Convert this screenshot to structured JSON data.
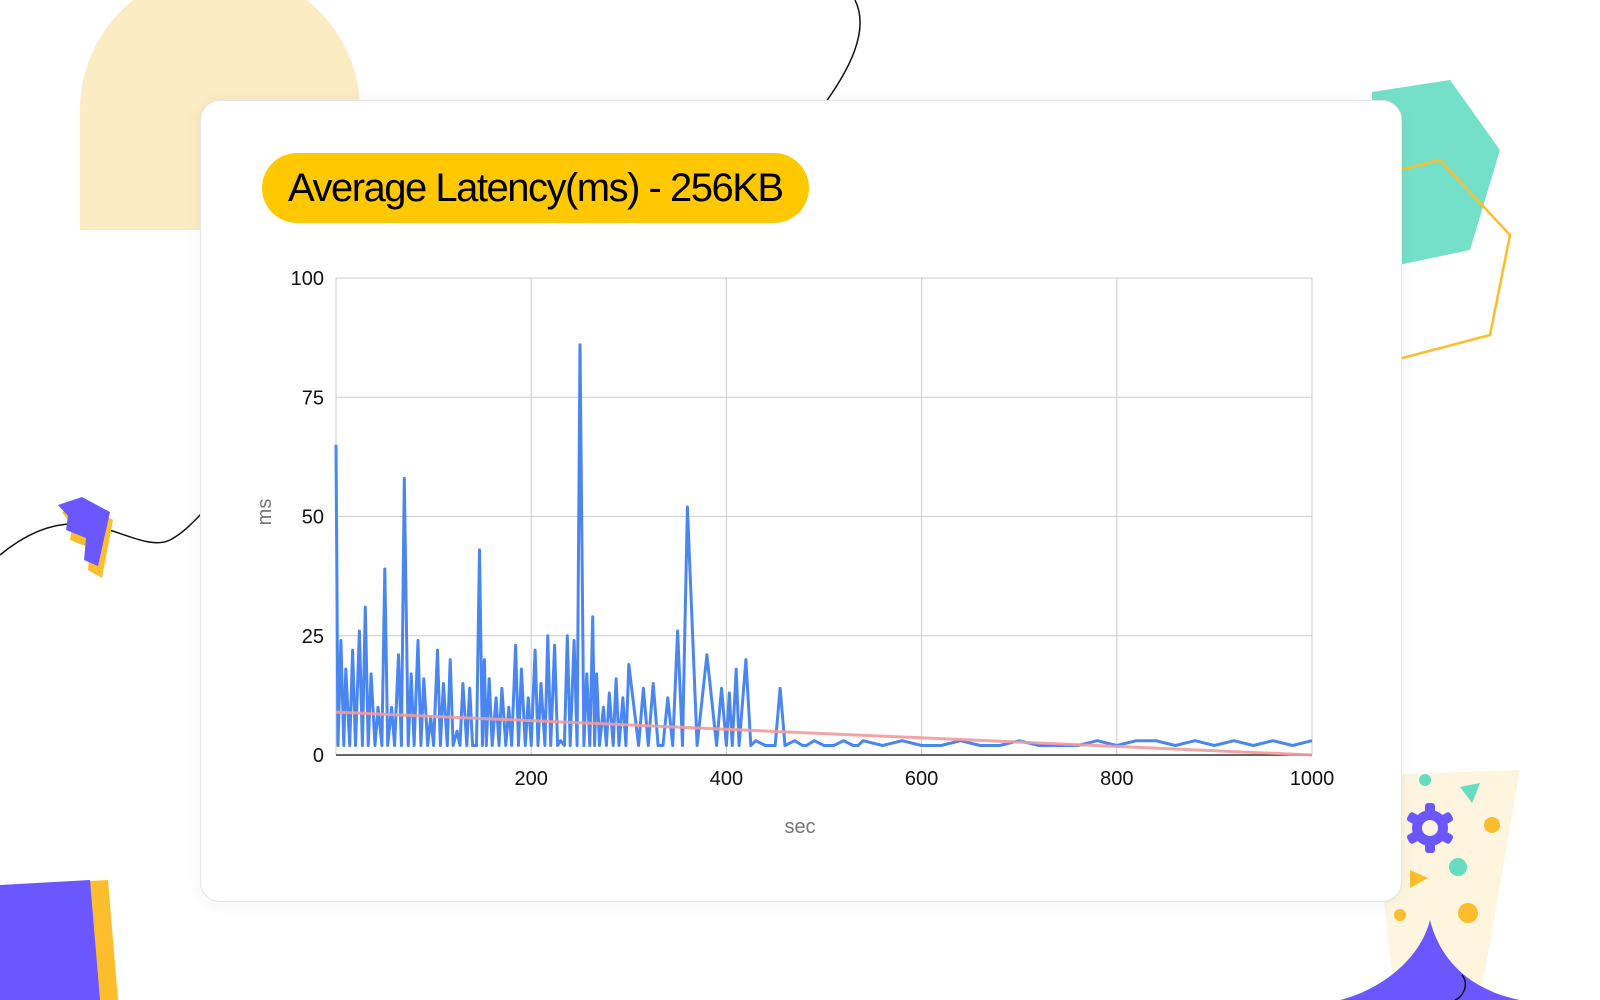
{
  "chart_data": {
    "type": "line",
    "title": "Average Latency(ms) - 256KB",
    "xlabel": "sec",
    "ylabel": "ms",
    "xlim": [
      0,
      1000
    ],
    "ylim": [
      0,
      100
    ],
    "x_ticks": [
      200,
      400,
      600,
      800,
      1000
    ],
    "y_ticks": [
      0,
      25,
      50,
      75,
      100
    ],
    "grid": true,
    "legend": "none",
    "series": [
      {
        "color": "#4a86f0",
        "baseline": 2.5,
        "x": [
          0,
          2,
          5,
          8,
          10,
          14,
          17,
          20,
          24,
          27,
          30,
          33,
          36,
          40,
          43,
          47,
          50,
          53,
          57,
          60,
          64,
          67,
          70,
          74,
          77,
          80,
          84,
          87,
          90,
          94,
          97,
          100,
          104,
          107,
          110,
          114,
          117,
          120,
          124,
          127,
          130,
          134,
          137,
          140,
          144,
          147,
          150,
          152,
          154,
          157,
          160,
          164,
          167,
          170,
          174,
          177,
          180,
          184,
          187,
          190,
          194,
          197,
          200,
          204,
          207,
          210,
          214,
          217,
          220,
          224,
          227,
          230,
          234,
          237,
          240,
          244,
          247,
          250,
          254,
          257,
          260,
          263,
          265,
          267,
          270,
          274,
          277,
          280,
          284,
          287,
          290,
          294,
          297,
          300,
          310,
          315,
          320,
          325,
          330,
          335,
          340,
          345,
          350,
          355,
          360,
          370,
          380,
          390,
          395,
          400,
          403,
          406,
          410,
          413,
          420,
          425,
          430,
          440,
          450,
          455,
          460,
          470,
          478,
          482,
          490,
          500,
          510,
          520,
          530,
          535,
          540,
          560,
          580,
          600,
          620,
          640,
          660,
          680,
          700,
          720,
          740,
          760,
          780,
          800,
          820,
          840,
          860,
          880,
          900,
          920,
          940,
          960,
          980,
          1000
        ],
        "y": [
          65,
          2,
          24,
          2,
          18,
          2,
          22,
          2,
          26,
          2,
          31,
          2,
          17,
          2,
          10,
          2,
          39,
          2,
          10,
          2,
          21,
          2,
          58,
          2,
          17,
          2,
          24,
          2,
          16,
          2,
          8,
          2,
          22,
          2,
          15,
          2,
          20,
          2,
          5,
          2,
          15,
          2,
          14,
          2,
          2,
          43,
          2,
          20,
          2,
          16,
          2,
          12,
          2,
          14,
          2,
          10,
          2,
          23,
          2,
          18,
          2,
          12,
          2,
          22,
          2,
          15,
          2,
          25,
          2,
          23,
          2,
          3,
          2,
          25,
          2,
          24,
          2,
          86,
          2,
          17,
          2,
          29,
          2,
          17,
          2,
          10,
          2,
          13,
          2,
          16,
          2,
          12,
          2,
          19,
          2,
          14,
          2,
          15,
          2,
          2,
          12,
          2,
          26,
          2,
          52,
          2,
          21,
          2,
          14,
          2,
          13,
          2,
          18,
          2,
          20,
          2,
          3,
          2,
          2,
          14,
          2,
          3,
          2,
          2,
          3,
          2,
          2,
          3,
          2,
          2,
          3,
          2,
          3,
          2,
          2,
          3,
          2,
          2,
          3,
          2,
          2,
          2,
          3,
          2,
          3,
          3,
          2,
          3,
          2,
          3,
          2,
          3,
          2,
          3
        ]
      },
      {
        "color": "#f29b9b",
        "type": "trendline",
        "x": [
          0,
          1000
        ],
        "y": [
          9,
          0
        ]
      }
    ]
  },
  "colors": {
    "title_bg": "#ffc800",
    "line": "#4a86f0",
    "trend": "#f29b9b",
    "deco_purple": "#6b57ff",
    "deco_yellow": "#fdbd2c",
    "deco_teal": "#66ddc3",
    "deco_cream": "#fcecc3"
  }
}
